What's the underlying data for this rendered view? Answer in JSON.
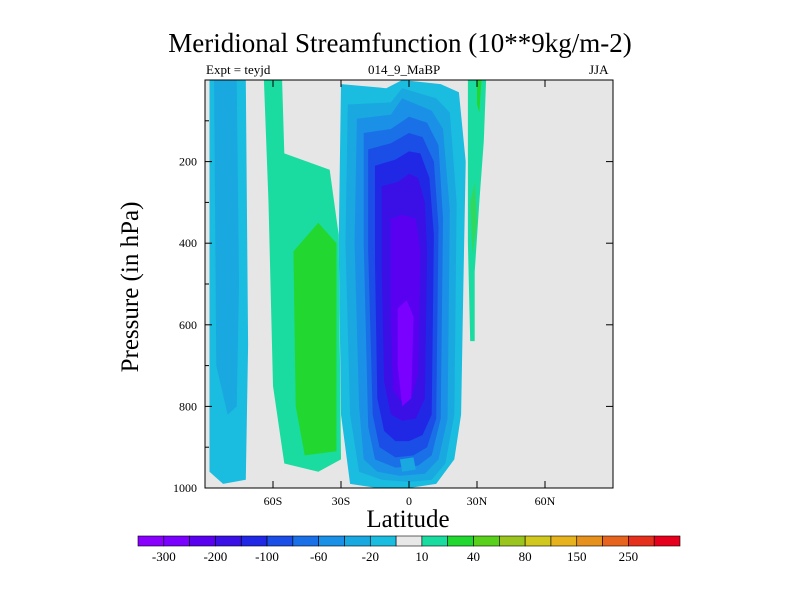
{
  "chart_data": {
    "type": "contour",
    "title": "Meridional Streamfunction (10**9kg/m-2)",
    "left_label": "Expt = teyjd",
    "center_label": "014_9_MaBP",
    "right_label": "JJA",
    "xlabel": "Latitude",
    "ylabel": "Pressure (in hPa)",
    "xlim": [
      -90,
      90
    ],
    "ylim": [
      1000,
      0
    ],
    "x_ticks": [
      {
        "value": -60,
        "label": "60S"
      },
      {
        "value": -30,
        "label": "30S"
      },
      {
        "value": 0,
        "label": "0"
      },
      {
        "value": 30,
        "label": "30N"
      },
      {
        "value": 60,
        "label": "60N"
      }
    ],
    "y_ticks": [
      {
        "value": 200,
        "label": "200"
      },
      {
        "value": 400,
        "label": "400"
      },
      {
        "value": 600,
        "label": "600"
      },
      {
        "value": 800,
        "label": "800"
      },
      {
        "value": 1000,
        "label": "1000"
      }
    ],
    "background_level_color": "#e6e6e6",
    "colorbar": {
      "colors": [
        "#8a00ff",
        "#7a00ff",
        "#5a00f0",
        "#3a10e6",
        "#2028e6",
        "#1a4ee6",
        "#1a70e6",
        "#1a90e6",
        "#19a8e0",
        "#1abcdf",
        "#e8e8e8",
        "#1adca0",
        "#22d830",
        "#58d01c",
        "#9ac41e",
        "#d0c81e",
        "#e6b21e",
        "#e6901e",
        "#e6641e",
        "#e6301e",
        "#e6001e"
      ],
      "labels": [
        "-300",
        "-200",
        "-100",
        "-60",
        "-20",
        "10",
        "40",
        "80",
        "150",
        "250"
      ]
    },
    "regions": [
      {
        "name": "sh-polar-cell",
        "color": "#1abcdf",
        "points": [
          [
            -88,
            0
          ],
          [
            -72,
            0
          ],
          [
            -71,
            650
          ],
          [
            -72,
            980
          ],
          [
            -82,
            990
          ],
          [
            -88,
            960
          ]
        ]
      },
      {
        "name": "sh-polar-core",
        "color": "#19a8e0",
        "points": [
          [
            -86,
            0
          ],
          [
            -76,
            0
          ],
          [
            -75,
            500
          ],
          [
            -76,
            800
          ],
          [
            -80,
            820
          ],
          [
            -85,
            700
          ]
        ]
      },
      {
        "name": "sh-ferrel-outer",
        "color": "#1adca0",
        "points": [
          [
            -64,
            0
          ],
          [
            -56,
            0
          ],
          [
            -55,
            180
          ],
          [
            -35,
            220
          ],
          [
            -31,
            380
          ],
          [
            -30,
            930
          ],
          [
            -40,
            960
          ],
          [
            -55,
            940
          ],
          [
            -60,
            750
          ],
          [
            -62,
            300
          ]
        ]
      },
      {
        "name": "sh-ferrel-inner",
        "color": "#22d830",
        "points": [
          [
            -51,
            420
          ],
          [
            -40,
            350
          ],
          [
            -32,
            400
          ],
          [
            -32,
            910
          ],
          [
            -46,
            920
          ],
          [
            -50,
            800
          ]
        ]
      },
      {
        "name": "hadley-1",
        "color": "#1abcdf",
        "points": [
          [
            -30,
            10
          ],
          [
            -10,
            20
          ],
          [
            -3,
            0
          ],
          [
            14,
            10
          ],
          [
            22,
            30
          ],
          [
            25,
            200
          ],
          [
            24,
            500
          ],
          [
            23,
            820
          ],
          [
            20,
            930
          ],
          [
            12,
            990
          ],
          [
            0,
            1000
          ],
          [
            -14,
            1000
          ],
          [
            -26,
            990
          ],
          [
            -30,
            820
          ],
          [
            -31,
            400
          ]
        ]
      },
      {
        "name": "hadley-2",
        "color": "#19a8e0",
        "points": [
          [
            -27,
            60
          ],
          [
            -8,
            55
          ],
          [
            -3,
            20
          ],
          [
            12,
            45
          ],
          [
            18,
            80
          ],
          [
            21,
            300
          ],
          [
            20,
            820
          ],
          [
            16,
            940
          ],
          [
            10,
            980
          ],
          [
            0,
            985
          ],
          [
            -12,
            980
          ],
          [
            -22,
            960
          ],
          [
            -26,
            820
          ],
          [
            -28,
            400
          ]
        ]
      },
      {
        "name": "hadley-3",
        "color": "#1a90e6",
        "points": [
          [
            -23,
            95
          ],
          [
            -8,
            85
          ],
          [
            -3,
            45
          ],
          [
            10,
            75
          ],
          [
            15,
            120
          ],
          [
            18,
            320
          ],
          [
            17,
            830
          ],
          [
            13,
            930
          ],
          [
            7,
            965
          ],
          [
            -4,
            970
          ],
          [
            -14,
            960
          ],
          [
            -20,
            930
          ],
          [
            -22,
            800
          ],
          [
            -24,
            400
          ]
        ]
      },
      {
        "name": "hadley-4",
        "color": "#1a70e6",
        "points": [
          [
            -20,
            130
          ],
          [
            -8,
            120
          ],
          [
            0,
            90
          ],
          [
            8,
            105
          ],
          [
            13,
            160
          ],
          [
            15,
            340
          ],
          [
            14,
            830
          ],
          [
            10,
            920
          ],
          [
            4,
            945
          ],
          [
            -6,
            950
          ],
          [
            -15,
            930
          ],
          [
            -18,
            850
          ],
          [
            -20,
            400
          ]
        ]
      },
      {
        "name": "hadley-5",
        "color": "#1a4ee6",
        "points": [
          [
            -18,
            170
          ],
          [
            -8,
            155
          ],
          [
            0,
            130
          ],
          [
            6,
            140
          ],
          [
            11,
            200
          ],
          [
            13,
            360
          ],
          [
            12,
            830
          ],
          [
            8,
            900
          ],
          [
            2,
            920
          ],
          [
            -6,
            925
          ],
          [
            -13,
            900
          ],
          [
            -16,
            820
          ],
          [
            -18,
            420
          ]
        ]
      },
      {
        "name": "hadley-6",
        "color": "#2028e6",
        "points": [
          [
            -15,
            210
          ],
          [
            -6,
            195
          ],
          [
            0,
            175
          ],
          [
            5,
            180
          ],
          [
            9,
            240
          ],
          [
            11,
            380
          ],
          [
            10,
            820
          ],
          [
            6,
            870
          ],
          [
            0,
            885
          ],
          [
            -6,
            885
          ],
          [
            -11,
            860
          ],
          [
            -14,
            780
          ],
          [
            -15,
            450
          ]
        ]
      },
      {
        "name": "hadley-7",
        "color": "#3a10e6",
        "points": [
          [
            -12,
            260
          ],
          [
            -5,
            250
          ],
          [
            0,
            230
          ],
          [
            4,
            240
          ],
          [
            7,
            300
          ],
          [
            8,
            420
          ],
          [
            7,
            780
          ],
          [
            3,
            830
          ],
          [
            -3,
            835
          ],
          [
            -8,
            820
          ],
          [
            -11,
            740
          ],
          [
            -12,
            480
          ]
        ]
      },
      {
        "name": "hadley-8",
        "color": "#5a00f0",
        "points": [
          [
            -8,
            340
          ],
          [
            -3,
            330
          ],
          [
            3,
            340
          ],
          [
            5,
            420
          ],
          [
            4,
            720
          ],
          [
            1,
            780
          ],
          [
            -4,
            785
          ],
          [
            -7,
            760
          ],
          [
            -8,
            600
          ]
        ]
      },
      {
        "name": "hadley-core",
        "color": "#7a00ff",
        "points": [
          [
            -5,
            560
          ],
          [
            -1,
            540
          ],
          [
            2,
            580
          ],
          [
            1,
            780
          ],
          [
            -3,
            800
          ],
          [
            -5,
            700
          ]
        ]
      },
      {
        "name": "hadley-small-patch",
        "color": "#19a8e0",
        "points": [
          [
            -4,
            930
          ],
          [
            2,
            925
          ],
          [
            3,
            955
          ],
          [
            -3,
            960
          ]
        ]
      },
      {
        "name": "nh-narrow-cell",
        "color": "#1adca0",
        "points": [
          [
            26,
            0
          ],
          [
            34,
            0
          ],
          [
            33,
            150
          ],
          [
            31,
            300
          ],
          [
            29,
            470
          ],
          [
            29,
            640
          ],
          [
            27,
            640
          ],
          [
            26,
            400
          ]
        ]
      },
      {
        "name": "nh-narrow-core",
        "color": "#22d830",
        "points": [
          [
            30,
            0
          ],
          [
            32,
            0
          ],
          [
            31,
            80
          ],
          [
            30,
            60
          ]
        ]
      },
      {
        "name": "nh-faint",
        "color": "#30d860",
        "points": [
          [
            27,
            300
          ],
          [
            29,
            250
          ],
          [
            30,
            350
          ],
          [
            28,
            430
          ]
        ]
      }
    ]
  }
}
